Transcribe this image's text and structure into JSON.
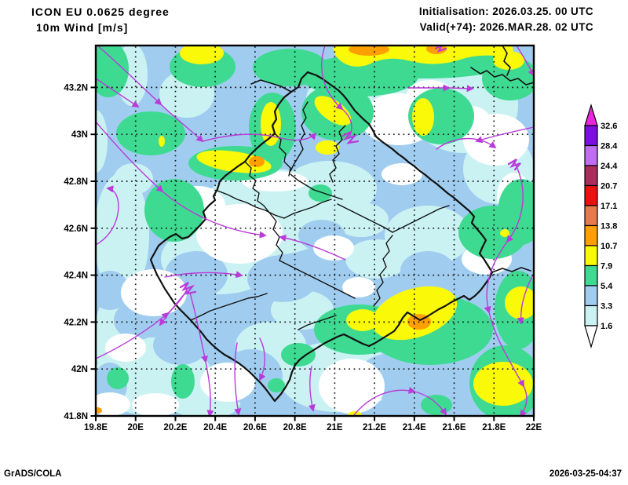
{
  "header": {
    "model_title": "ICON EU 0.0625 degree",
    "field_title": "10m Wind [m/s]",
    "init_line": "Initialisation: 2026.03.25. 00 UTC",
    "valid_line": "Valid(+74): 2026.MAR.28. 02 UTC"
  },
  "footer": {
    "credit": "GrADS/COLA",
    "created": "2026-03-25-04:37"
  },
  "axes": {
    "x": {
      "labels": [
        "19.8E",
        "20E",
        "20.2E",
        "20.4E",
        "20.6E",
        "20.8E",
        "21E",
        "21.2E",
        "21.4E",
        "21.6E",
        "21.8E",
        "22E"
      ]
    },
    "y": {
      "labels": [
        "43.2N",
        "43N",
        "42.8N",
        "42.6N",
        "42.4N",
        "42.2N",
        "42N",
        "41.8N"
      ]
    }
  },
  "colorbar": {
    "levels": [
      "32.6",
      "28.4",
      "24.4",
      "20.7",
      "17.1",
      "13.8",
      "10.7",
      "7.9",
      "5.4",
      "3.3",
      "1.6"
    ],
    "segment_colors_top_to_bottom": [
      "#ea25dd",
      "#7c0fe3",
      "#bf6ef0",
      "#aa2d5c",
      "#ee0f10",
      "#e57a4e",
      "#ff9f00",
      "#f9f908",
      "#3eda92",
      "#a0cdef",
      "#cbf2f3",
      "#ffffff"
    ]
  },
  "palette": {
    "blue": "#a0cdef",
    "cyan": "#cbf2f3",
    "white": "#ffffff",
    "green": "#3eda92",
    "yellow": "#f9f908",
    "orange": "#ff9f00",
    "stream": "#b93bd9",
    "border": "#111111",
    "grid": "#1a1a1a"
  },
  "chart_data": {
    "type": "heatmap",
    "subtype": "filled-contour weather map with streamlines",
    "title": "ICON EU 0.0625 degree — 10m Wind [m/s]",
    "init_time": "2026.03.25. 00 UTC",
    "valid_time": "2026.MAR.28. 02 UTC (+74)",
    "lon_ticks": [
      19.8,
      20.0,
      20.2,
      20.4,
      20.6,
      20.8,
      21.0,
      21.2,
      21.4,
      21.6,
      21.8,
      22.0
    ],
    "lat_ticks": [
      43.2,
      43.0,
      42.8,
      42.6,
      42.4,
      42.2,
      42.0,
      41.8
    ],
    "contour_levels_m_s": [
      1.6,
      3.3,
      5.4,
      7.9,
      10.7,
      13.8,
      17.1,
      20.7,
      24.4,
      28.4,
      32.6
    ],
    "value_range_shown_m_s": [
      0,
      14
    ],
    "grid": true,
    "legend_position": "right colorbar with over/under arrows"
  }
}
